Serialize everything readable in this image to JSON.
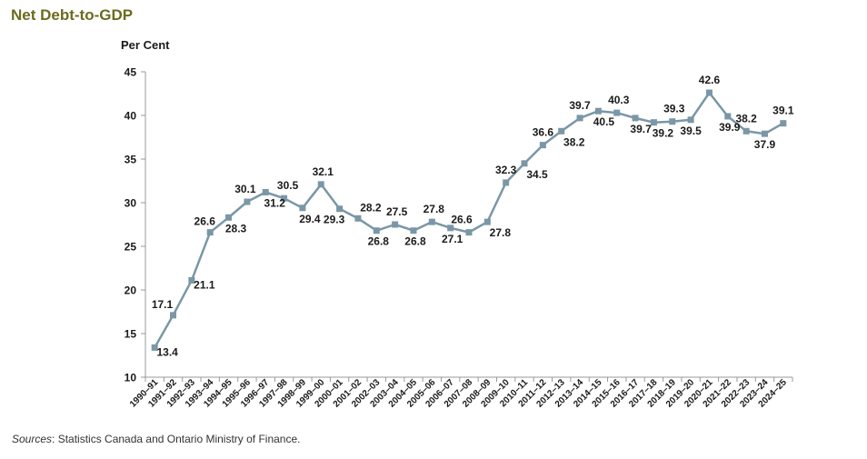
{
  "chart_title": "Net Debt-to-GDP",
  "source": {
    "prefix": "Sources",
    "text": ": Statistics Canada and Ontario Ministry of Finance."
  },
  "colors": {
    "title": "#6b6b1f",
    "series": "#7a97a6",
    "marker": "#7a97a6",
    "axis": "#999999",
    "text": "#1a1a1a"
  },
  "chart_data": {
    "type": "line",
    "title": "Net Debt-to-GDP",
    "ylabel": "Per Cent",
    "xlabel": "",
    "ylim": [
      10,
      45
    ],
    "yticks": [
      10,
      15,
      20,
      25,
      30,
      35,
      40,
      45
    ],
    "grid": false,
    "categories": [
      "1990–91",
      "1991–92",
      "1992–93",
      "1993–94",
      "1994–95",
      "1995–96",
      "1996–97",
      "1997–98",
      "1998–99",
      "1999–00",
      "2000–01",
      "2001–02",
      "2002–03",
      "2003–04",
      "2004–05",
      "2005–06",
      "2006–07",
      "2007–08",
      "2008–09",
      "2009–10",
      "2010–11",
      "2011–12",
      "2012–13",
      "2013–14",
      "2014–15",
      "2015–16",
      "2016–17",
      "2017–18",
      "2018–19",
      "2019–20",
      "2020–21",
      "2021–22",
      "2022–23",
      "2023–24",
      "2024–25"
    ],
    "series": [
      {
        "values": [
          13.4,
          17.1,
          21.1,
          26.6,
          28.3,
          30.1,
          31.2,
          30.5,
          29.4,
          32.1,
          29.3,
          28.2,
          26.8,
          27.5,
          26.8,
          27.8,
          27.1,
          26.6,
          27.8,
          32.3,
          34.5,
          36.6,
          38.2,
          39.7,
          40.5,
          40.3,
          39.7,
          39.2,
          39.3,
          39.5,
          42.6,
          39.9,
          38.2,
          37.9,
          39.1
        ],
        "data_labels": [
          "13.4",
          "17.1",
          "21.1",
          "26.6",
          "28.3",
          "30.1",
          "31.2",
          "30.5",
          "29.4",
          "32.1",
          "29.3",
          "28.2",
          "26.8",
          "27.5",
          "26.8",
          "27.8",
          "27.1",
          "26.6",
          "27.8",
          "32.3",
          "34.5",
          "36.6",
          "38.2",
          "39.7",
          "40.5",
          "40.3",
          "39.7",
          "39.2",
          "39.3",
          "39.5",
          "42.6",
          "39.9",
          "38.2",
          "37.9",
          "39.1"
        ]
      }
    ]
  }
}
